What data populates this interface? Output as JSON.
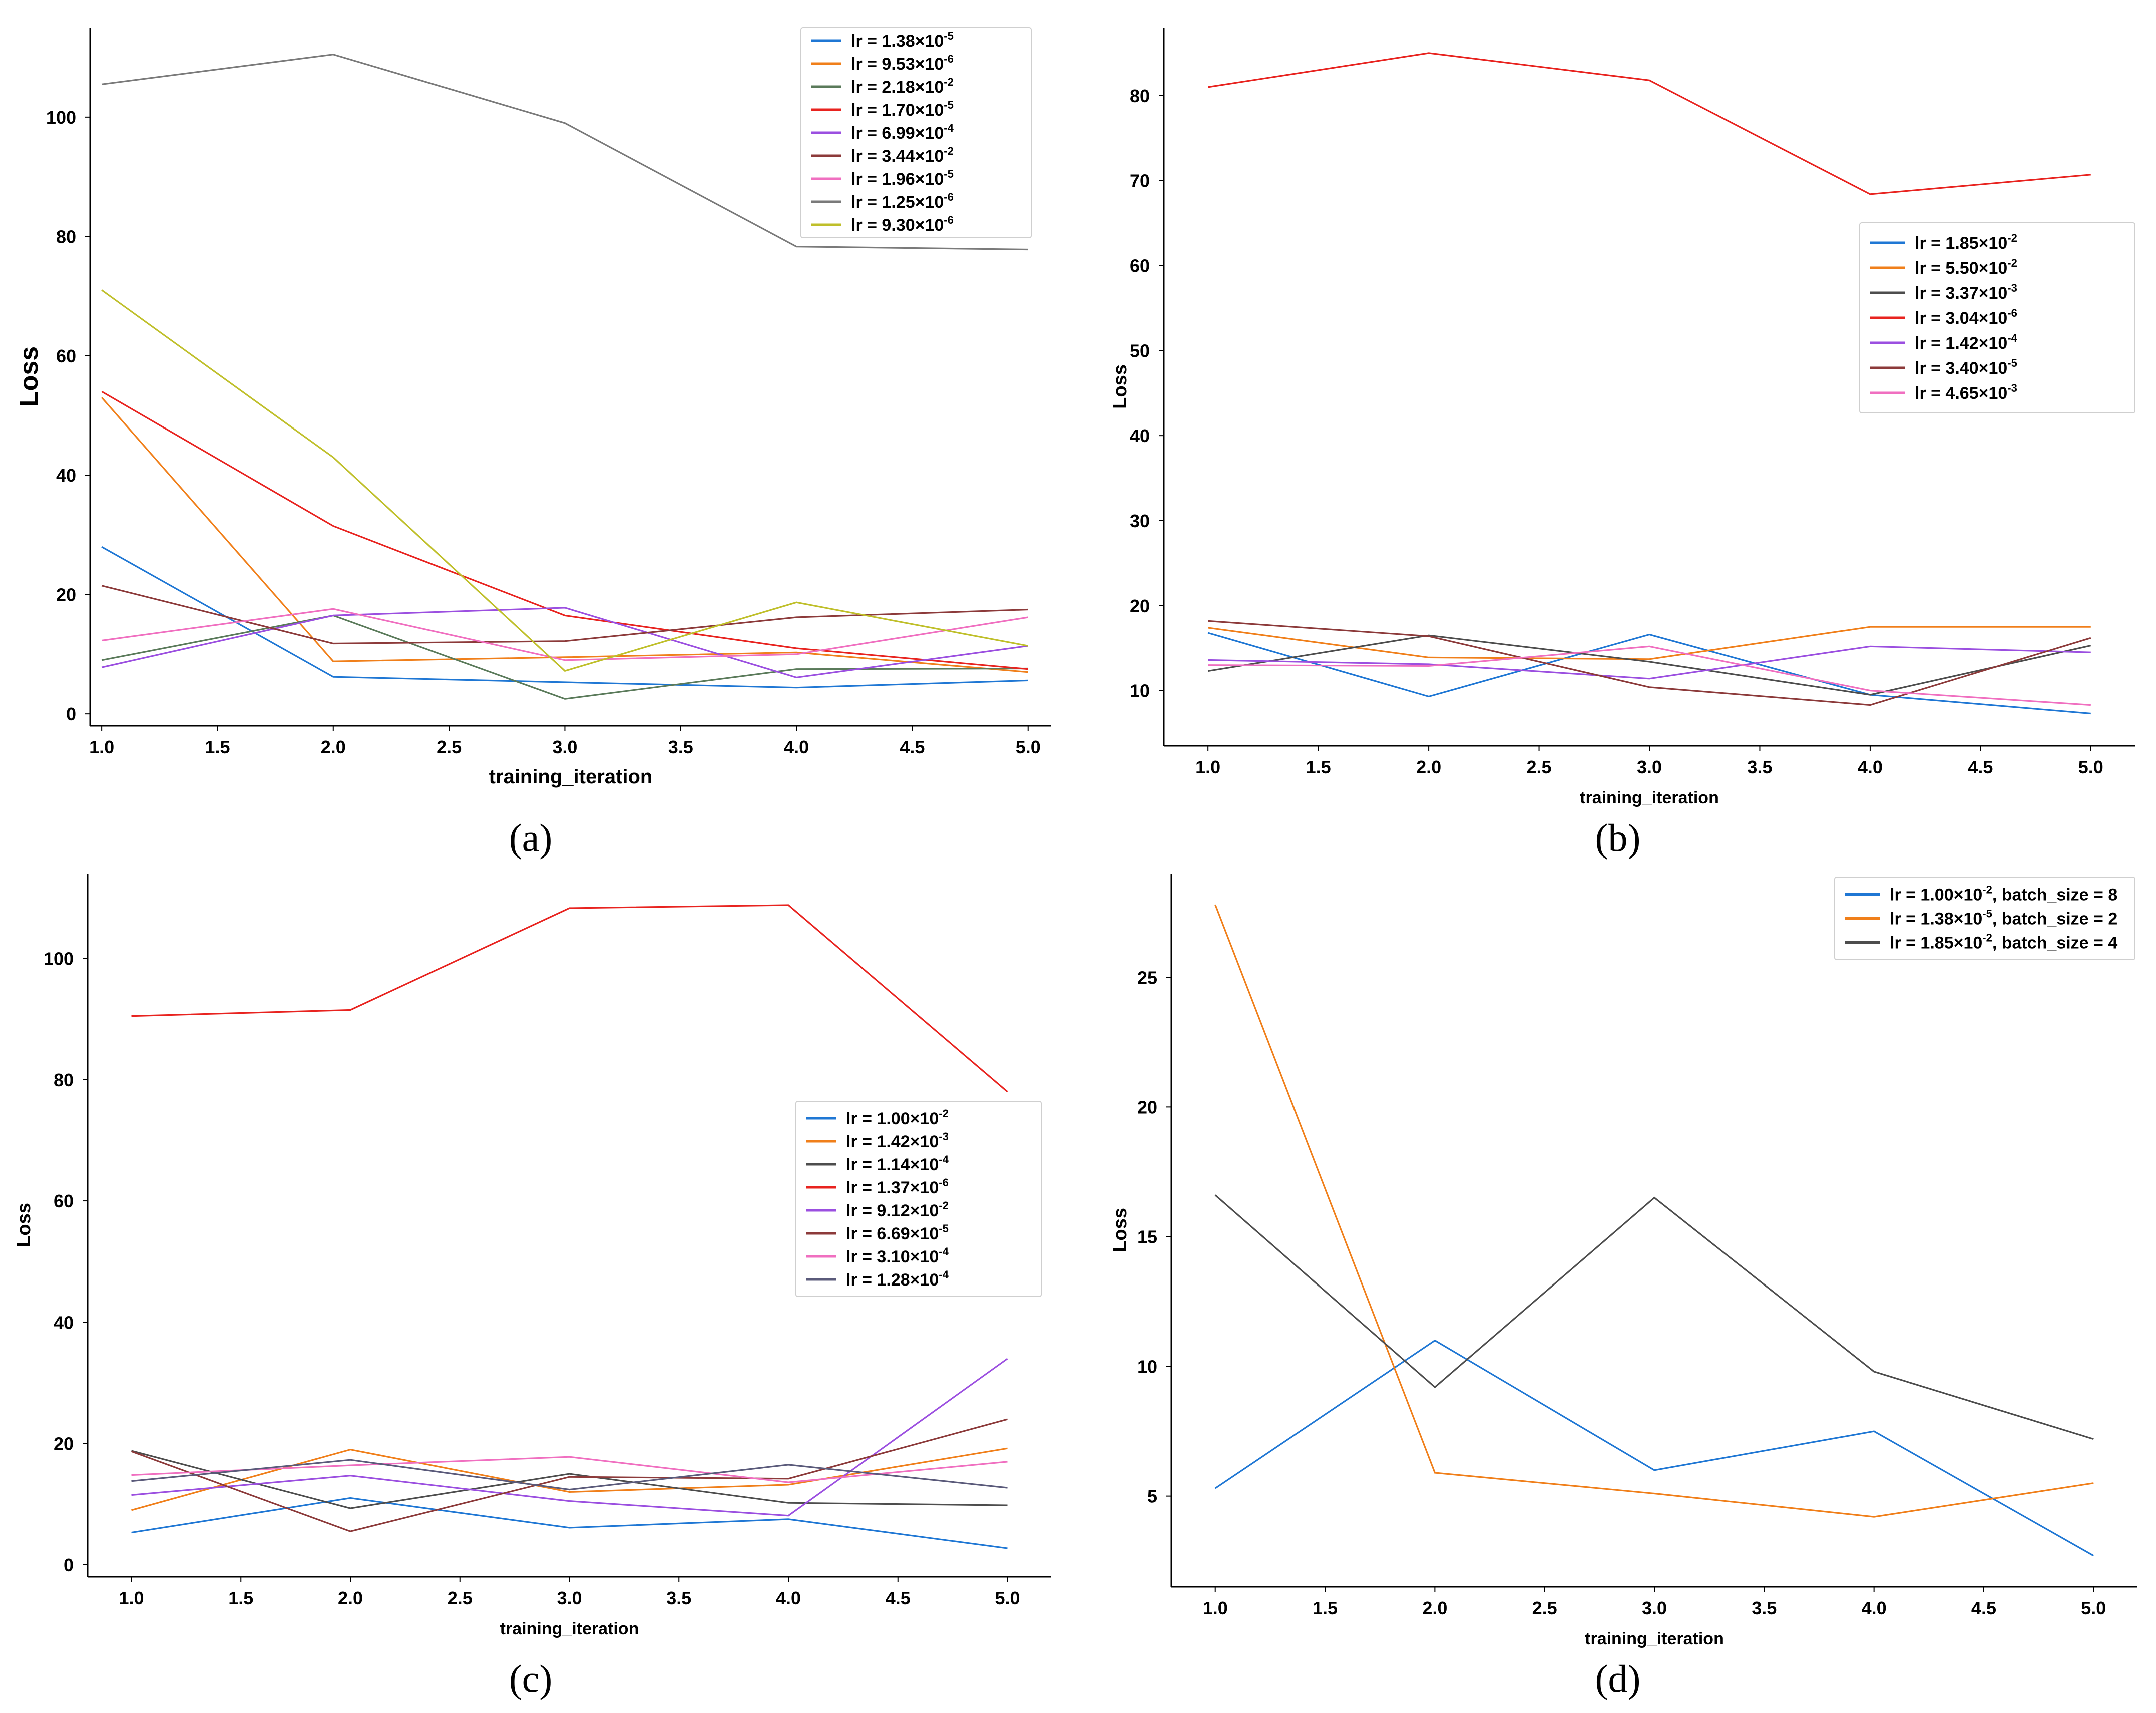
{
  "colors": {
    "blue": "#1f77d4",
    "orange": "#f07f1a",
    "darkgrey": "#4d4d4d",
    "grey": "#7a7a7a",
    "green": "#5a7a5a",
    "red": "#e8231f",
    "purple": "#9b4fe0",
    "maroon": "#8c3a3a",
    "pink": "#f06fc0",
    "olive": "#bfbf2a",
    "tan": "#d9b48a",
    "slate": "#5a5a7a"
  },
  "chart_data": [
    {
      "panel": "(a)",
      "type": "line",
      "title": "",
      "xlabel": "training_iteration",
      "ylabel": "Loss",
      "xlim": [
        0.95,
        5.1
      ],
      "ylim": [
        -2,
        115
      ],
      "xticks": [
        "1.0",
        "1.5",
        "2.0",
        "2.5",
        "3.0",
        "3.5",
        "4.0",
        "4.5",
        "5.0"
      ],
      "yticks": [
        "0",
        "20",
        "40",
        "60",
        "80",
        "100"
      ],
      "legend_position": "top-right",
      "x": [
        1.0,
        2.0,
        3.0,
        4.0,
        5.0
      ],
      "series": [
        {
          "name": "lr = 1.38×10",
          "exp": "-5",
          "color": "blue",
          "values": [
            28,
            6.2,
            5.3,
            4.4,
            5.6
          ]
        },
        {
          "name": "lr = 9.53×10",
          "exp": "-6",
          "color": "orange",
          "values": [
            53,
            8.8,
            9.5,
            10.3,
            7.0
          ]
        },
        {
          "name": "lr = 2.18×10",
          "exp": "-2",
          "color": "green",
          "values": [
            9,
            16.5,
            2.5,
            7.5,
            7.6
          ]
        },
        {
          "name": "lr = 1.70×10",
          "exp": "-5",
          "color": "red",
          "values": [
            54,
            31.5,
            16.5,
            11.0,
            7.5
          ]
        },
        {
          "name": "lr = 6.99×10",
          "exp": "-4",
          "color": "purple",
          "values": [
            7.8,
            16.5,
            17.8,
            6.1,
            11.4
          ]
        },
        {
          "name": "lr = 3.44×10",
          "exp": "-2",
          "color": "maroon",
          "values": [
            21.5,
            11.8,
            12.2,
            16.2,
            17.5
          ]
        },
        {
          "name": "lr = 1.96×10",
          "exp": "-5",
          "color": "pink",
          "values": [
            12.3,
            17.6,
            9.0,
            10.0,
            16.2
          ]
        },
        {
          "name": "lr = 1.25×10",
          "exp": "-6",
          "color": "grey",
          "values": [
            105.5,
            110.5,
            99.0,
            78.3,
            77.8
          ]
        },
        {
          "name": "lr = 9.30×10",
          "exp": "-6",
          "color": "olive",
          "values": [
            71.0,
            43.0,
            7.2,
            18.7,
            11.4
          ]
        }
      ]
    },
    {
      "panel": "(b)",
      "type": "line",
      "title": "",
      "xlabel": "training_iteration",
      "ylabel": "Loss",
      "xlim": [
        0.8,
        5.2
      ],
      "ylim": [
        3.5,
        88
      ],
      "xticks": [
        "1.0",
        "1.5",
        "2.0",
        "2.5",
        "3.0",
        "3.5",
        "4.0",
        "4.5",
        "5.0"
      ],
      "yticks": [
        "10",
        "20",
        "30",
        "40",
        "50",
        "60",
        "70",
        "80"
      ],
      "legend_position": "right",
      "x": [
        1.0,
        2.0,
        3.0,
        4.0,
        5.0
      ],
      "series": [
        {
          "name": "lr = 1.85×10",
          "exp": "-2",
          "color": "blue",
          "values": [
            16.8,
            9.3,
            16.6,
            9.5,
            7.3
          ]
        },
        {
          "name": "lr = 5.50×10",
          "exp": "-2",
          "color": "orange",
          "values": [
            17.4,
            13.9,
            13.7,
            17.5,
            17.5
          ]
        },
        {
          "name": "lr = 3.37×10",
          "exp": "-3",
          "color": "darkgrey",
          "values": [
            12.3,
            16.5,
            13.4,
            9.5,
            15.3
          ]
        },
        {
          "name": "lr = 3.04×10",
          "exp": "-6",
          "color": "red",
          "values": [
            81,
            85,
            81.8,
            68.4,
            70.7
          ]
        },
        {
          "name": "lr = 1.42×10",
          "exp": "-4",
          "color": "purple",
          "values": [
            13.6,
            13.1,
            11.4,
            15.2,
            14.5
          ]
        },
        {
          "name": "lr = 3.40×10",
          "exp": "-5",
          "color": "maroon",
          "values": [
            18.2,
            16.4,
            10.4,
            8.3,
            16.2
          ]
        },
        {
          "name": "lr = 4.65×10",
          "exp": "-3",
          "color": "pink",
          "values": [
            13.0,
            12.9,
            15.2,
            10.0,
            8.3
          ]
        }
      ]
    },
    {
      "panel": "(c)",
      "type": "line",
      "title": "",
      "xlabel": "training_iteration",
      "ylabel": "Loss",
      "xlim": [
        0.8,
        5.2
      ],
      "ylim": [
        -2,
        114
      ],
      "xticks": [
        "1.0",
        "1.5",
        "2.0",
        "2.5",
        "3.0",
        "3.5",
        "4.0",
        "4.5",
        "5.0"
      ],
      "yticks": [
        "0",
        "20",
        "40",
        "60",
        "80",
        "100"
      ],
      "legend_position": "right",
      "x": [
        1.0,
        2.0,
        3.0,
        4.0,
        5.0
      ],
      "series": [
        {
          "name": "lr = 1.00×10",
          "exp": "-2",
          "color": "blue",
          "values": [
            5.3,
            11.0,
            6.1,
            7.5,
            2.7
          ]
        },
        {
          "name": "lr = 1.42×10",
          "exp": "-3",
          "color": "orange",
          "values": [
            9.0,
            19.0,
            12.0,
            13.2,
            19.2
          ]
        },
        {
          "name": "lr = 1.14×10",
          "exp": "-4",
          "color": "darkgrey",
          "values": [
            18.8,
            9.3,
            15.0,
            10.2,
            9.8
          ]
        },
        {
          "name": "lr = 1.37×10",
          "exp": "-6",
          "color": "red",
          "values": [
            90.5,
            91.5,
            108.3,
            108.8,
            78.0
          ]
        },
        {
          "name": "lr = 9.12×10",
          "exp": "-2",
          "color": "purple",
          "values": [
            11.5,
            14.7,
            10.5,
            8.1,
            34.0
          ]
        },
        {
          "name": "lr = 6.69×10",
          "exp": "-5",
          "color": "maroon",
          "values": [
            18.7,
            5.5,
            14.5,
            14.2,
            24.0
          ]
        },
        {
          "name": "lr = 3.10×10",
          "exp": "-4",
          "color": "pink",
          "values": [
            14.8,
            16.4,
            17.8,
            13.6,
            17.0
          ]
        },
        {
          "name": "lr = 1.28×10",
          "exp": "-4",
          "color": "slate",
          "values": [
            13.8,
            17.3,
            12.4,
            16.5,
            12.7
          ]
        }
      ]
    },
    {
      "panel": "(d)",
      "type": "line",
      "title": "",
      "xlabel": "training_iteration",
      "ylabel": "Loss",
      "xlim": [
        0.8,
        5.2
      ],
      "ylim": [
        1.5,
        29
      ],
      "xticks": [
        "1.0",
        "1.5",
        "2.0",
        "2.5",
        "3.0",
        "3.5",
        "4.0",
        "4.5",
        "5.0"
      ],
      "yticks": [
        "5",
        "10",
        "15",
        "20",
        "25"
      ],
      "legend_position": "top-right",
      "x": [
        1.0,
        2.0,
        3.0,
        4.0,
        5.0
      ],
      "series": [
        {
          "name": "lr = 1.00×10",
          "exp": "-2",
          "suffix": ", batch_size = 8",
          "color": "blue",
          "values": [
            5.3,
            11.0,
            6.0,
            7.5,
            2.7
          ]
        },
        {
          "name": "lr = 1.38×10",
          "exp": "-5",
          "suffix": ", batch_size = 2",
          "color": "orange",
          "values": [
            27.8,
            5.9,
            5.1,
            4.2,
            5.5
          ]
        },
        {
          "name": "lr = 1.85×10",
          "exp": "-2",
          "suffix": ", batch_size = 4",
          "color": "darkgrey",
          "values": [
            16.6,
            9.2,
            16.5,
            9.8,
            7.2
          ]
        }
      ]
    }
  ]
}
